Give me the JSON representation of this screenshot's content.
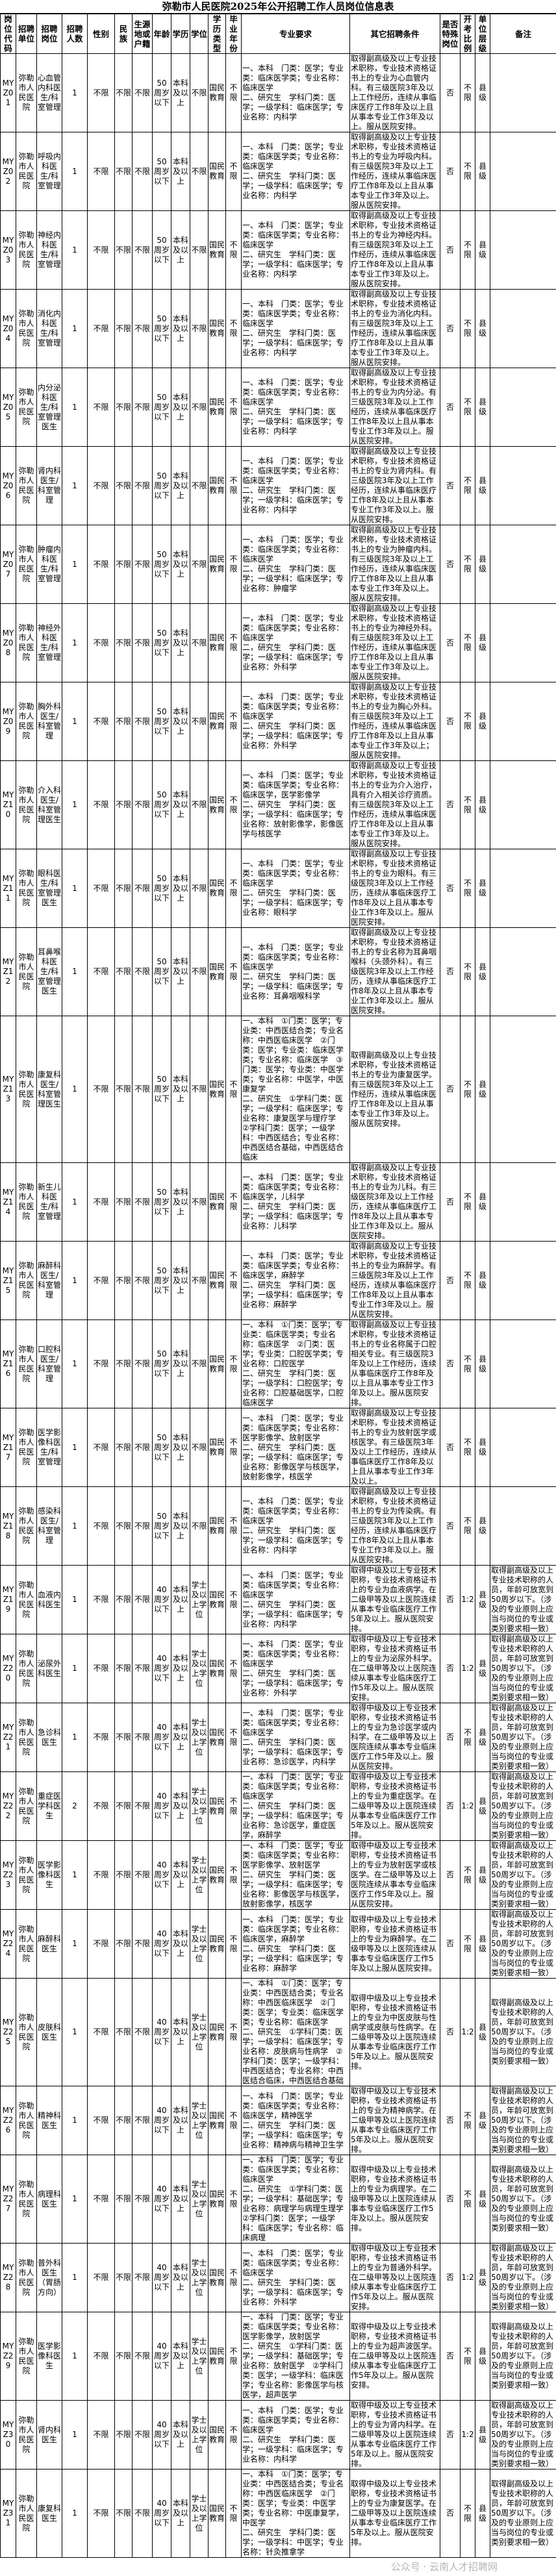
{
  "title": "弥勒市人民医院2025年公开招聘工作人员岗位信息表",
  "headers": [
    "岗位代码",
    "招聘单位",
    "招聘岗位",
    "招聘人数",
    "性别",
    "民族",
    "生源地或户籍",
    "年龄",
    "学历",
    "学位",
    "学历类型",
    "毕业年份",
    "专业要求",
    "其它招聘条件",
    "是否特殊岗位",
    "开考比例",
    "单位层级",
    "备注"
  ],
  "rows": [
    [
      "MYZ01",
      "弥勒市人民医院",
      "心血管内科医生/科室管理",
      "1",
      "不限",
      "不限",
      "不限",
      "50周岁以下",
      "本科及以上",
      "不限",
      "国民教育",
      "不限",
      "一、本科　门类：医学；专业类：临床医学类；专业名称：临床医学\n二、研究生　学科门类：医学；一级学科：临床医学；专业名称：内科学",
      "取得副高级及以上专业技术职称，专业技术资格证书上的专业为心血管内科。有三级医院3年及以上工作经历，连续从事临床医疗工作8年及以上且从事本专业工作3年及以上。服从医院安排。",
      "否",
      "不限",
      "县级",
      ""
    ],
    [
      "MYZ02",
      "弥勒市人民医院",
      "呼吸内科医生/科室管理",
      "1",
      "不限",
      "不限",
      "不限",
      "50周岁以下",
      "本科及以上",
      "不限",
      "国民教育",
      "不限",
      "一、本科　门类：医学；专业类：临床医学类；专业名称：临床医学\n二、研究生　学科门类：医学；一级学科：临床医学；专业名称：内科学",
      "取得副高级及以上专业技术职称，专业技术资格证书上的专业为呼吸内科。有三级医院3年及以上工作经历，连续从事临床医疗工作8年及以上且从事本专业工作3年及以上。服从医院安排。",
      "否",
      "不限",
      "县级",
      ""
    ],
    [
      "MYZ03",
      "弥勒市人民医院",
      "神经内科医生/科室管理",
      "1",
      "不限",
      "不限",
      "不限",
      "50周岁以下",
      "本科及以上",
      "不限",
      "国民教育",
      "不限",
      "一、本科　门类：医学；专业类：临床医学类；专业名称：临床医学\n二、研究生　学科门类：医学；一级学科：临床医学；专业名称：内科学",
      "取得副高级及以上专业技术职称，专业技术资格证书上的专业为神经内科。有三级医院3年及以上工作经历，连续从事临床医疗工作8年及以上且从事本专业工作3年及以上。服从医院安排。",
      "否",
      "不限",
      "县级",
      ""
    ],
    [
      "MYZ04",
      "弥勒市人民医院",
      "消化内科医生/科室管理",
      "1",
      "不限",
      "不限",
      "不限",
      "50周岁以下",
      "本科及以上",
      "不限",
      "国民教育",
      "不限",
      "一、本科　门类：医学；专业类：临床医学类；专业名称：临床医学\n二、研究生　学科门类：医学；一级学科：临床医学；专业名称：内科学",
      "取得副高级及以上专业技术职称，专业技术资格证书上的专业为消化内科。有三级医院3年及以上工作经历，连续从事临床医疗工作8年及以上且从事本专业工作3年及以上。服从医院安排。",
      "否",
      "不限",
      "县级",
      ""
    ],
    [
      "MYZ05",
      "弥勒市人民医院",
      "内分泌科医生/科室管理医生",
      "1",
      "不限",
      "不限",
      "不限",
      "50周岁以下",
      "本科及以上",
      "不限",
      "国民教育",
      "不限",
      "一、本科　门类：医学；专业类：临床医学类；专业名称：临床医学\n二、研究生　学科门类：医学；一级学科：临床医学；专业名称：内科学",
      "取得副高级及以上专业技术职称，专业技术资格证书上的专业为内分泌。有三级医院3年及以上工作经历，连续从事临床医疗工作8年及以上且从事本专业工作3年及以上。服从医院安排。",
      "否",
      "不限",
      "县级",
      ""
    ],
    [
      "MYZ06",
      "弥勒市人民医院",
      "肾内科医生/科室管理",
      "1",
      "不限",
      "不限",
      "不限",
      "50周岁以下",
      "本科及以上",
      "不限",
      "国民教育",
      "不限",
      "一、本科　门类：医学；专业类：临床医学类；专业名称：临床医学\n二、研究生　学科门类：医学；一级学科：临床医学；专业名称：内科学",
      "取得副高级及以上专业技术职称，专业技术资格证书上的专业为肾内科。有三级医院3年及以上工作经历，连续从事临床医疗工作8年及以上且从事本专业工作3年及以上。服从医院安排。",
      "否",
      "不限",
      "县级",
      ""
    ],
    [
      "MYZ07",
      "弥勒市人民医院",
      "肿瘤内科医生/科室管理",
      "1",
      "不限",
      "不限",
      "不限",
      "50周岁以下",
      "本科及以上",
      "不限",
      "国民教育",
      "不限",
      "一、本科　门类：医学；专业类：临床医学类；专业名称：临床医学\n二、研究生　学科门类：医学；一级学科：临床医学；专业名称：肿瘤学",
      "取得副高级及以上专业技术职称，专业技术资格证书上的专业为肿瘤内科。有三级医院3年及以上工作经历，连续从事临床医疗工作8年及以上且从事本专业工作3年及以上。服从医院安排。",
      "否",
      "不限",
      "县级",
      ""
    ],
    [
      "MYZ08",
      "弥勒市人民医院",
      "神经外科医生/科室管理",
      "1",
      "不限",
      "不限",
      "不限",
      "50周岁以下",
      "本科及以上",
      "不限",
      "国民教育",
      "不限",
      "一，本科　门类：医学；专业类：临床医学类；专业名称：临床医学\n二，研究生　学科门类：医学；一级学科：临床医学；专业名称：外科学",
      "取得副高级及以上专业技术职称，专业技术资格证书上的专业为神经外科。有三级医院3年及以上工作经历，连续从事临床医疗工作8年及以上且从事本专业工作3年及以上。服从医院安排。",
      "否",
      "不限",
      "县级",
      ""
    ],
    [
      "MYZ09",
      "弥勒市人民医院",
      "胸外科医生/科室管理",
      "1",
      "不限",
      "不限",
      "不限",
      "50周岁以下",
      "本科及以上",
      "不限",
      "国民教育",
      "不限",
      "一、本科　门类：医学；专业类：临床医学类；专业名称：临床医学\n二、研究生　学科门类：医学；一级学科：临床医学；专业名称：外科学",
      "取得副高级及以上专业技术职称，专业技术资格证书上的专业为胸心外科。有三级医院3年及以上工作经历，连续从事临床医疗工作8年及以上且从事本专业工作3年及以上；服从医院安排。",
      "否",
      "不限",
      "县级",
      ""
    ],
    [
      "MYZ10",
      "弥勒市人民医院",
      "介入科医生/科室管理医生",
      "1",
      "不限",
      "不限",
      "不限",
      "50周岁以下",
      "本科及以上",
      "不限",
      "国民教育",
      "不限",
      "一、本科　门类：医学；专业类：临床医学类；专业名称：临床医学，医学影像学\n二、研究生　学科门类：医学；一级学科：临床医学；专业名称：放射影像学，影像医学与核医学",
      "取得副高级及以上专业技术职称，专业技术资格证书上的专业为介入治疗，具有介入相关诊疗资质。有三级医院3年及以上工作经历，连续从事临床医疗工作8年及以上且从事本专业工作3年及以上。服从医院安排。",
      "否",
      "不限",
      "县级",
      ""
    ],
    [
      "MYZ11",
      "弥勒市人民医院",
      "眼科医生/科室管理医生",
      "1",
      "不限",
      "不限",
      "不限",
      "50周岁以下",
      "本科及以上",
      "不限",
      "国民教育",
      "不限",
      "一、本科　门类：医学；专业类：临床医学类；专业名称：临床医学\n二、研究生　学科门类：医学；一级学科：临床医学；专业名称：眼科学",
      "取得副高级及以上专业技术职称，专业技术资格证书上的专业为眼科。有三级医院3年及以上工作经历，连续从事临床医疗工作8年及以上且从事本专业工作3年及以上。服从医院安排。",
      "否",
      "不限",
      "县级",
      ""
    ],
    [
      "MYZ12",
      "弥勒市人民医院",
      "耳鼻喉科医生/科室管理医生",
      "1",
      "不限",
      "不限",
      "不限",
      "50周岁以下",
      "本科及以上",
      "不限",
      "国民教育",
      "不限",
      "一、本科　门类：医学；专业类：临床医学类；专业名称：临床医学\n二、研究生　学科门类：医学；一级学科：临床医学；专业名称：耳鼻咽喉科学",
      "取得副高级及以上专业技术职称，专业技术资格证书上的专业名称为耳鼻咽喉科（头颈外科）。有三级医院3年及以上工作经历，连续从事临床医疗工作8年及以上且从事本专业工作3年及以上。服从医院安排。",
      "否",
      "不限",
      "县级",
      ""
    ],
    [
      "MYZ13",
      "弥勒市人民医院",
      "康复科医生/科室管理医生",
      "1",
      "不限",
      "不限",
      "不限",
      "50周岁以下",
      "本科及以上",
      "不限",
      "国民教育",
      "不限",
      "一、本科　①门类：医学；专业类：中西医结合类；专业名称：中西医临床医学　②门类：医学；专业类：临床医学类；专业名称：临床医学　③门类：医学；专业类：中医学类；专业名称：中医学，中医康复学\n二、研究生　①学科门类：医学；一级学科：临床医学；专业名称：康复医学与理疗学　②学科门类：医学；一级学科：中西医结合；专业名称：中西医结合基础，中西医结合临床",
      "取得副高级及以上专业技术职称，专业技术资格证书上的专业为康复医学。有三级医院3年及以上工作经历，连续从事临床医疗工作8年及以上且从事本专业工作3年及以上。服从医院安排。",
      "否",
      "不限",
      "县级",
      ""
    ],
    [
      "MYZ14",
      "弥勒市人民医院",
      "新生儿科医生/科室管理",
      "1",
      "不限",
      "不限",
      "不限",
      "50周岁以下",
      "本科及以上",
      "不限",
      "国民教育",
      "不限",
      "一、本科　门类：医学；专业类：临床医学类；专业名称：临床医学，儿科学\n二、研究生　学科门类：医学；一级学科：临床医学；专业名称：儿科学",
      "取得副高级及以上专业技术职称，专业技术资格证书上的专业为儿科。有三级医院3年及以上工作经历，连续从事临床医疗工作8年及以上且从事本专业工作3年及以上。服从医院安排。",
      "否",
      "不限",
      "县级",
      ""
    ],
    [
      "MYZ15",
      "弥勒市人民医院",
      "麻醉科医生/科室管理",
      "1",
      "不限",
      "不限",
      "不限",
      "50周岁以下",
      "本科及以上",
      "不限",
      "国民教育",
      "不限",
      "一、本科　门类：医学；专业类：临床医学类；专业名称：临床医学，麻醉学\n二、研究生　学科门类：医学；一级学科：临床医学；专业名称：麻醉学",
      "取得副高级及以上专业技术职称，专业技术资格证书上的专业为麻醉学。有三级医院3年及以上工作经历，连续从事临床医疗工作8年及以上且从事本专业工作3年及以上。服从医院安排。",
      "否",
      "不限",
      "县级",
      ""
    ],
    [
      "MYZ16",
      "弥勒市人民医院",
      "口腔科医生/科室管理",
      "1",
      "不限",
      "不限",
      "不限",
      "50周岁以下",
      "本科及以上",
      "不限",
      "国民教育",
      "不限",
      "一、本科　①门类：医学；专业类：临床医学类；专业名称：临床医学　②门类：医学；专业类：口腔医学类；专业名称：口腔医学\n二、研究生　学科门类：医学；一级学科：口腔医学；专业名称：口腔基础医学，口腔临床医学",
      "取得副高级及以上专业技术职称，专业技术资格证书上的专业名称属于口腔相关专业。有三级医院3年及以上工作经历，连续从事临床医疗工作8年及以上且从事本专业工作3年及以上。服从医院安排。",
      "否",
      "不限",
      "县级",
      ""
    ],
    [
      "MYZ17",
      "弥勒市人民医院",
      "医学影像科医生/科室管理",
      "1",
      "不限",
      "不限",
      "不限",
      "50周岁以下",
      "本科及以上",
      "不限",
      "国民教育",
      "不限",
      "一、本科　门类：医学；专业类：临床医学类；专业名称：医学影像学、放射医学\n二、研究生　学科门类：医学；一级学科：临床医学；专业名称：影像医学与核医学，放射影像学，核医学",
      "取得副高级及以上专业技术职称，专业技术资格证书上的专业为放射医学或核医学。有三级医院3年及以上工作经历，连续从事临床医疗工作8年及以上且从事本专业工作3年及以上。",
      "否",
      "不限",
      "县级",
      ""
    ],
    [
      "MYZ18",
      "弥勒市人民医院",
      "感染科医生/科室管理",
      "1",
      "不限",
      "不限",
      "不限",
      "50周岁以下",
      "本科及以上",
      "不限",
      "国民教育",
      "不限",
      "一、本科　门类：医学；专业类：临床医学类；专业名称：临床医学\n二、研究生　学科门类：医学；一级学科：临床医学；专业名称：内科学",
      "取得副高级及以上专业技术职称，专业技术资格证书上的专业为传染病。有三级医院3年及以上工作经历，连续从事临床医疗工作8年及以上且从事本专业工作3年及以上。服从医院安排。",
      "否",
      "不限",
      "县级",
      ""
    ],
    [
      "MYZ19",
      "弥勒市人民医院",
      "血液内科医生",
      "1",
      "不限",
      "不限",
      "不限",
      "40周岁以下",
      "本科及以上",
      "学士及以上学位",
      "国民教育",
      "不限",
      "一、本科　门类：医学；专业类：临床医学类；专业名称：临床医学\n二、研究生　学科门类：医学；一级学科：临床医学；专业名称：内科学",
      "取得中级及以上专业技术职称，专业技术资格证书上的专业为血液病学。在二级甲等及以上医院连续从事本专业临床医疗工作5年及以上。服从医院安排。",
      "否",
      "1:2",
      "县级",
      "取得副高级及以上专业技术职称的人员，年龄可放宽到50周岁以下。（涉及的专业原则上应当与岗位的专业或类别要求相一致）"
    ],
    [
      "MYZ20",
      "弥勒市人民医院",
      "泌尿外科医生",
      "1",
      "不限",
      "不限",
      "不限",
      "40周岁以下",
      "本科及以上",
      "学士及以上学位",
      "国民教育",
      "不限",
      "一、本科　门类：医学；专业类：临床医学类；专业名称：临床医学\n二、研究生　学科门类：医学；一级学科：临床医学；专业名称：外科学",
      "取得中级及以上专业技术职称，专业技术资格证书上的专业为泌尿外科学。在二级甲等及以上医院连续从事本专业临床医疗工作5年及以上。服从医院安排。",
      "否",
      "1:2",
      "县级",
      "取得副高级及以上专业技术职称的人员，年龄可放宽到50周岁以下。（涉及的专业原则上应当与岗位的专业或类别要求相一致）"
    ],
    [
      "MYZ21",
      "弥勒市人民医院",
      "急诊科医生",
      "1",
      "不限",
      "不限",
      "不限",
      "40周岁以下",
      "本科及以上",
      "学士及以上学位",
      "国民教育",
      "不限",
      "一、本科　门类：医学；专业类：临床医学类；专业名称：临床医学\n二、研究生　学科门类：医学；一级学科：临床医学；专业名称：急诊医学，内科学",
      "取得中级及以上专业技术职称，专业技术资格证书上的专业为急诊医学或内科学。在二级甲等及以上医院连续从事本专业临床医疗工作5年及以上。服从医院安排。",
      "否",
      "不限",
      "县级",
      "取得副高级及以上专业技术职称的人员，年龄可放宽到50周岁以下。（涉及的专业原则上应当与岗位的专业或类别要求相一致）"
    ],
    [
      "MYZ22",
      "弥勒市人民医院",
      "重症医学科医生",
      "2",
      "不限",
      "不限",
      "不限",
      "40周岁以下",
      "本科及以上",
      "学士及以上学位",
      "国民教育",
      "不限",
      "一、本科　门类：医学；专业类：临床医学类；专业名称：临床医学\n二、研究生　学科门类：医学；一级学科：临床医学；专业名称：急诊医学，重症医学，麻醉学",
      "取得中级及以上专业技术职称，专业技术资格证书上的专业为重症医学。在二级甲等及以上医院连续从事本专业临床医疗工作5年及以上。服从医院安排。",
      "否",
      "1:2",
      "县级",
      "取得副高级及以上专业技术职称的人员，年龄可放宽到50周岁以下。（涉及的专业原则上应当与岗位的专业或类别要求相一致）"
    ],
    [
      "MYZ23",
      "弥勒市人民医院",
      "医学影像科医生",
      "1",
      "不限",
      "不限",
      "不限",
      "40周岁以下",
      "本科及以上",
      "学士及以上学位",
      "国民教育",
      "不限",
      "一、本科　门类：医学；专业类：临床医学类；专业名称：医学影像学、放射医学\n二、研究生　学科门类：医学；一级学科：临床医学；专业名称：影像医学与核医学，放射影像学，核医学",
      "取得中级及以上专业技术职称，专业技术资格证书上的专业为放射医学或核医学。在二级甲等及以上医院连续从事本专业临床医疗工作5年及以上。服从医院安排。",
      "否",
      "不限",
      "县级",
      "取得副高级及以上专业技术职称的人员，年龄可放宽到50周岁以下。（涉及的专业原则上应当与岗位的专业或类别要求相一致）"
    ],
    [
      "MYZ24",
      "弥勒市人民医院",
      "麻醉科医生",
      "1",
      "不限",
      "不限",
      "不限",
      "40周岁以下",
      "本科及以上",
      "学士及以上学位",
      "国民教育",
      "不限",
      "一、本科　门类：医学；专业类：临床医学类；专业名称：临床医学，麻醉学\n二、研究生　学科门类：医学；一级学科：临床医学；专业名称：麻醉学",
      "取得中级及以上专业技术职称，专业技术资格证书上的专业为麻醉学。在二级甲等及以上医院连续从事本专业临床医疗工作5年及以上服从医院安排。",
      "否",
      "不限",
      "县级",
      "取得副高级及以上专业技术职称的人员，年龄可放宽到50周岁以下。（涉及的专业原则上应当与岗位的专业或类别要求相一致）"
    ],
    [
      "MYZ25",
      "弥勒市人民医院",
      "皮肤科医生",
      "1",
      "不限",
      "不限",
      "不限",
      "40周岁以下",
      "本科及以上",
      "学士及以上学位",
      "国民教育",
      "不限",
      "一、本科　①门类：医学；专业类：中西医结合类；专业名称：中西医临床医学　②门类：医学；专业类：临床医学类；专业名称：临床医学\n二、研究生　①学科门类：医学；一级学科：临床医学；专业名称：皮肤病与性病学　②学科门类：医学；一级学科：中西医结合；专业名称：中西医结合临床，中西医结合基础",
      "取得中级及以上专业技术职称，专业技术资格证书上的专业为中医皮肤与性病学或皮肤与性病学。在二级甲等及以上医院连续从事本专业临床医疗工作5年及以上。服从医院安排。",
      "否",
      "1:2",
      "县级",
      "取得副高级及以上专业技术职称的人员，年龄可放宽到50周岁以下。（涉及的专业原则上应当与岗位的专业或类别要求相一致）"
    ],
    [
      "MYZ26",
      "弥勒市人民医院",
      "精神科医生",
      "1",
      "不限",
      "不限",
      "不限",
      "40周岁以下",
      "本科及以上",
      "学士及以上学位",
      "国民教育",
      "不限",
      "一、本科　门类：医学；专业类：临床医学类；专业名称：临床医学，精神医学\n二、研究生　学科门类：医学；一级学科：临床医学；专业名称：精神病与精神卫生学",
      "取得中级及以上专业技术职称，专业技术资格证书上的专业为精神病学。在二级甲等及以上医院连续从事本专业临床医疗工作5年及以上。服从医院安排。",
      "否",
      "不限",
      "县级",
      "取得副高级及以上专业技术职称的人员，年龄可放宽到50周岁以下。（涉及的专业原则上应当与岗位的专业或类别要求相一致）"
    ],
    [
      "MYZ27",
      "弥勒市人民医院",
      "病理科医生",
      "1",
      "不限",
      "不限",
      "不限",
      "40周岁以下",
      "本科及以上",
      "学士及以上学位",
      "国民教育",
      "不限",
      "一、本科　门类：医学；专业类：临床医学类；专业名称：临床医学\n二、研究生　①学科门类：医学；一级学科：基础医学；专业名称：病理学与病理生理学　②学科门类：医学；一级学科：临床医学；专业名称：临床病理",
      "取得中级及以上专业技术职称，专业技术资格证书上的专业为病理学。在二级甲等及以上医院连续从事本专业临床医疗工作5年及以上。服从医院安排。",
      "否",
      "不限",
      "县级",
      "取得副高级及以上专业技术职称的人员，年龄可放宽到50周岁以下。（涉及的专业原则上应当与岗位的专业或类别要求相一致）"
    ],
    [
      "MYZ28",
      "弥勒市人民医院",
      "普外科医生（胃肠方向）",
      "1",
      "不限",
      "不限",
      "不限",
      "40周岁以下",
      "本科及以上",
      "学士及以上学位",
      "国民教育",
      "不限",
      "一、本科　门类：医学；专业类：临床医学类；专业名称：临床医学\n二、研究生　学科门类：医学；一级学科：临床医学；专业名称：外科学",
      "取得中级及以上专业技术职称，专业技术资格证书上的专业为普通外科学。在二级甲等及以上医院连续从事本专业临床医疗工作5年及以上。服从医院安排。",
      "否",
      "1:2",
      "县级",
      "取得副高级及以上专业技术职称的人员，年龄可放宽到50周岁以下。（涉及的专业原则上应当与岗位的专业或类别要求相一致）"
    ],
    [
      "MYZ29",
      "弥勒市人民医院",
      "医学影像科医生",
      "1",
      "不限",
      "不限",
      "不限",
      "40周岁以下",
      "本科及以上",
      "学士及以上学位",
      "国民教育",
      "不限",
      "一、本科　门类：医学；专业类：临床医学类；专业名称：医学影像学，放射医学\n二、研究生　①学科门类：医学；一级学科：基础医学；专业名称：放射医学　②学科门类：医学；一级学科：临床医学；专业名称：影像医学与核医学，超声医学",
      "取得中级及以上专业技术职称，专业技术资格证书上的专业为超声波医学。在二级甲等及以上医院连续从事本专业临床医疗工作5年及以上。服从医院安排。",
      "否",
      "不限",
      "县级",
      "取得副高级及以上专业技术职称的人员，年龄可放宽到50周岁以下。（涉及的专业原则上应当与岗位的专业或类别要求相一致）"
    ],
    [
      "MYZ30",
      "弥勒市人民医院",
      "肾内科医生",
      "1",
      "不限",
      "不限",
      "不限",
      "40周岁以下",
      "本科及以上",
      "学士及以上学位",
      "国民教育",
      "不限",
      "一、本科　门类：医学；专业类：临床医学类；专业名称：临床医学\n二、研究生　学科门类：医学；一级学科：临床医学；专业名称：内科学",
      "取得中级及以上专业技术职称，专业技术资格证书上的专业为肾内科学。在二级甲等及以上医院连续从事本专业临床医疗工作5年及以上。服从医院安排。",
      "否",
      "1:2",
      "县级",
      "取得副高级及以上专业技术职称的人员，年龄可放宽到50周岁以下。（涉及的专业原则上应当与岗位的专业或类别要求相一致）"
    ],
    [
      "MYZ31",
      "弥勒市人民医院",
      "康复科医生",
      "1",
      "不限",
      "不限",
      "不限",
      "40周岁以下",
      "本科及以上",
      "学士及以上学位",
      "国民教育",
      "不限",
      "一、本科　①门类：医学；专业类：中西医结合类；专业名称：中西医临床医学　②门类：医学；专业类：中医学类；专业名称：中医康复学，中医学\n二、研究生　学科门类：医学；一级学科：中医学；专业名称：针灸推拿学",
      "取得中级及以上专业技术职称，专业技术资格证书上的专业为康复医学。在二级甲等及以上医院连续从事本专业临床医疗工作5年及以上。服从医院安排。",
      "否",
      "不限",
      "县级",
      "取得副高级及以上专业技术职称的人员，年龄可放宽到50周岁以下。（涉及的专业原则上应当与岗位的专业或类别要求相一致）"
    ]
  ],
  "watermark": "公众号 · 云南人才招聘网"
}
